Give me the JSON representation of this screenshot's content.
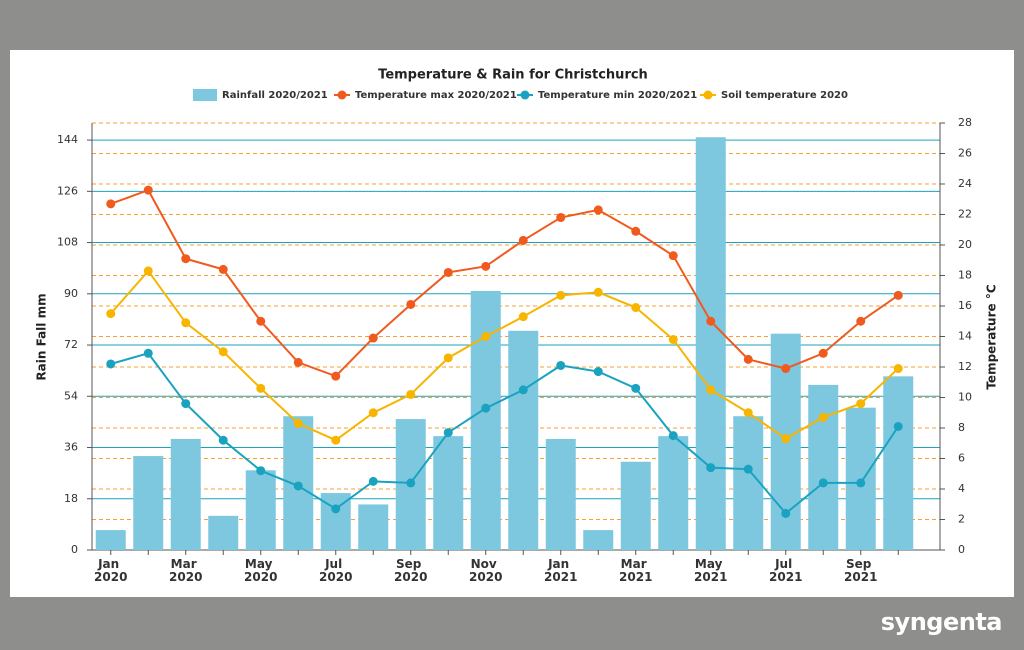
{
  "chart_data": {
    "type": "bar-line",
    "title": "Temperature & Rain for Christchurch",
    "ylabel": "Rain Fall mm",
    "y2label": "Temperature °C",
    "categories": [
      "Jan 2020",
      null,
      "Mar 2020",
      null,
      "May 2020",
      null,
      "Jul 2020",
      null,
      "Sep 2020",
      null,
      "Nov 2020",
      null,
      "Jan 2021",
      null,
      "Mar 2021",
      null,
      "May 2021",
      null,
      "Jul 2021",
      null,
      "Sep 2021",
      null
    ],
    "series": [
      {
        "name": "Rainfall 2020/2021",
        "type": "bar",
        "color": "#7ec8df",
        "values": [
          7,
          33,
          39,
          12,
          28,
          47,
          20,
          16,
          46,
          40,
          91,
          77,
          39,
          7,
          31,
          40,
          145,
          47,
          76,
          58,
          50,
          61
        ]
      },
      {
        "name": "Temperature max 2020/2021",
        "type": "line",
        "axis": "y2",
        "color": "#f05a1e",
        "values": [
          22.7,
          23.6,
          19.1,
          18.4,
          15.0,
          12.3,
          11.4,
          13.9,
          16.1,
          18.2,
          18.6,
          20.3,
          21.8,
          22.3,
          20.9,
          19.3,
          15.0,
          12.5,
          11.9,
          12.9,
          15.0,
          16.7
        ]
      },
      {
        "name": "Temperature min 2020/2021",
        "type": "line",
        "axis": "y2",
        "color": "#1aa3c0",
        "values": [
          12.2,
          12.9,
          9.6,
          7.2,
          5.2,
          4.2,
          2.7,
          4.5,
          4.4,
          7.7,
          9.3,
          10.5,
          12.1,
          11.7,
          10.6,
          7.5,
          5.4,
          5.3,
          2.4,
          4.4,
          4.4,
          8.1
        ]
      },
      {
        "name": "Soil temperature 2020",
        "type": "line",
        "axis": "y2",
        "color": "#f7b500",
        "values": [
          15.5,
          18.3,
          14.9,
          13.0,
          10.6,
          8.3,
          7.2,
          9.0,
          10.2,
          12.6,
          14.0,
          15.3,
          16.7,
          16.9,
          15.9,
          13.8,
          10.5,
          9.0,
          7.3,
          8.7,
          9.6,
          11.9
        ]
      }
    ],
    "ylim": [
      0,
      150
    ],
    "yticks": [
      0,
      18,
      36,
      54,
      72,
      90,
      108,
      126,
      144
    ],
    "y2lim": [
      0,
      28
    ],
    "y2ticks": [
      0,
      2,
      4,
      6,
      8,
      10,
      12,
      14,
      16,
      18,
      20,
      22,
      24,
      26,
      28
    ],
    "grid": true,
    "y2grid": true,
    "grid_color": "#1aa3c0",
    "y2grid_color": "#f7a030"
  },
  "logo": "syngenta"
}
